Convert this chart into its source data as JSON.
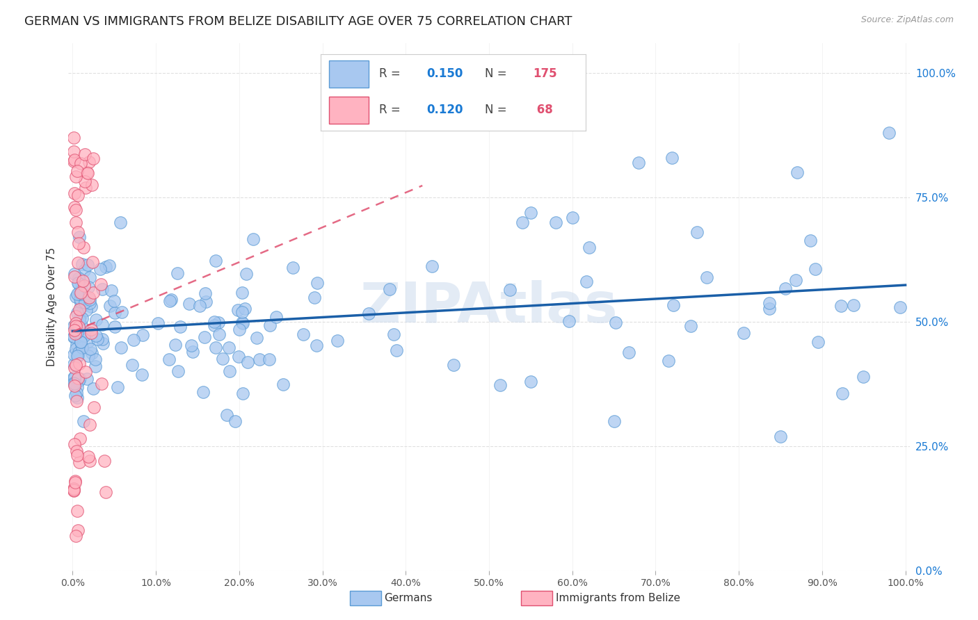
{
  "title": "GERMAN VS IMMIGRANTS FROM BELIZE DISABILITY AGE OVER 75 CORRELATION CHART",
  "source": "Source: ZipAtlas.com",
  "ylabel": "Disability Age Over 75",
  "xlabel_ticks": [
    "0.0%",
    "10.0%",
    "20.0%",
    "30.0%",
    "40.0%",
    "50.0%",
    "60.0%",
    "70.0%",
    "80.0%",
    "90.0%",
    "100.0%"
  ],
  "ylabel_ticks": [
    "0.0%",
    "25.0%",
    "50.0%",
    "75.0%",
    "100.0%"
  ],
  "xlim": [
    0.0,
    1.0
  ],
  "ylim": [
    0.0,
    1.0
  ],
  "german_R": 0.15,
  "german_N": 175,
  "belize_R": 0.12,
  "belize_N": 68,
  "german_color": "#a8c8f0",
  "german_edge_color": "#5b9bd5",
  "belize_color": "#ffb3c1",
  "belize_edge_color": "#e05070",
  "trend_german_color": "#1a5fa8",
  "trend_belize_color": "#e05070",
  "watermark": "ZIPAtlas",
  "legend_R_color": "#1a7ad4",
  "legend_N_color": "#e05070",
  "background_color": "#ffffff",
  "grid_color": "#dddddd",
  "title_fontsize": 13,
  "axis_label_fontsize": 11,
  "tick_fontsize": 10
}
